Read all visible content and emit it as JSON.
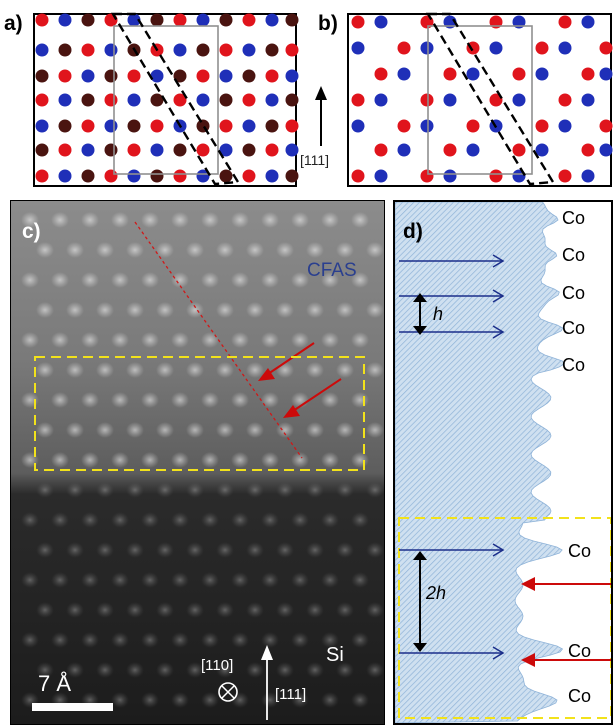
{
  "panels": {
    "a": {
      "label": "a)"
    },
    "b": {
      "label": "b)"
    },
    "c": {
      "label": "c)"
    },
    "d": {
      "label": "d)"
    }
  },
  "direction_label": "[111]",
  "image": {
    "layer_label": "CFAS",
    "substrate_label": "Si",
    "scalebar_label": "7 Å",
    "axis_in": "[110]",
    "axis_up": "[111]"
  },
  "profile": {
    "peak_labels": [
      "Co",
      "Co",
      "Co",
      "Co",
      "Co",
      "Co",
      "Co",
      "Co"
    ],
    "spacing_label": "h",
    "double_spacing_label": "2h"
  },
  "colors": {
    "red_atom": "#e0141c",
    "blue_atom": "#1f2fb8",
    "dark_atom": "#4a1410",
    "profile_fill": "#b9d3ea",
    "highlight_box": "#f2e21b",
    "arrow_blue": "#1b2e8a",
    "arrow_red": "#cc0a0a",
    "text_blue": "#2a3f8f"
  }
}
